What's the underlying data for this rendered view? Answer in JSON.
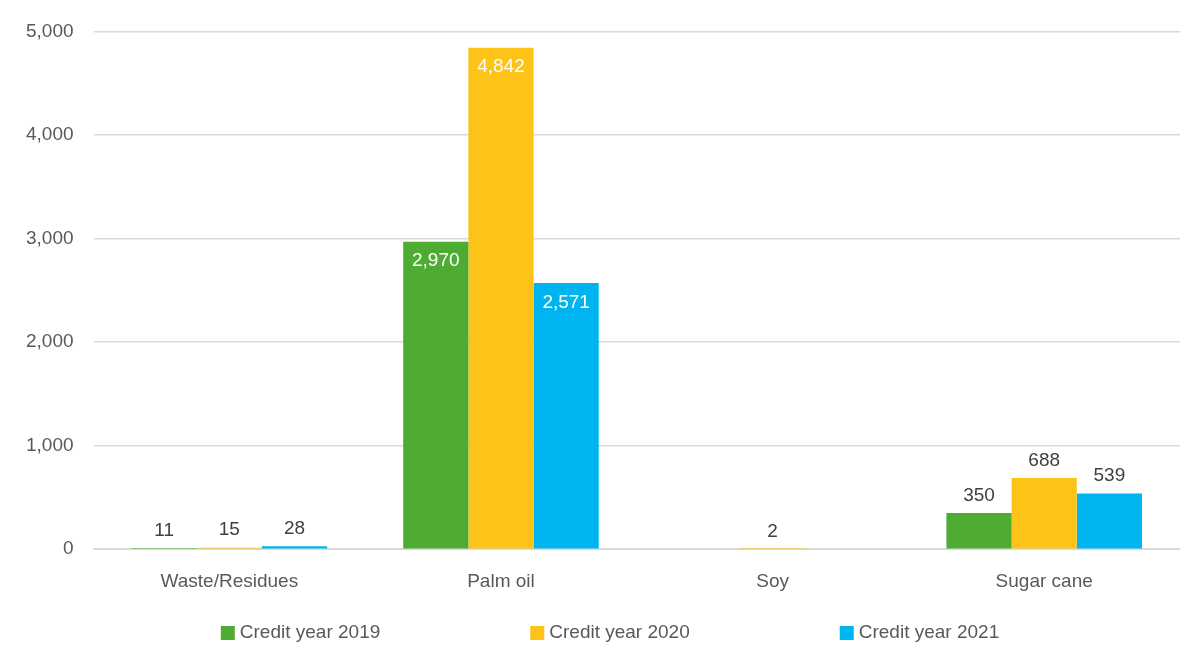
{
  "chart_data": {
    "type": "bar",
    "categories": [
      "Waste/Residues",
      "Palm oil",
      "Soy",
      "Sugar cane"
    ],
    "series": [
      {
        "name": "Credit year 2019",
        "color": "#4eac33",
        "values": [
          11,
          2970,
          null,
          350
        ],
        "value_labels": [
          "11",
          "2,970",
          null,
          "350"
        ]
      },
      {
        "name": "Credit year 2020",
        "color": "#fdc319",
        "values": [
          15,
          4842,
          2,
          688
        ],
        "value_labels": [
          "15",
          "4,842",
          "2",
          "688"
        ]
      },
      {
        "name": "Credit year 2021",
        "color": "#00b5ef",
        "values": [
          28,
          2571,
          null,
          539
        ],
        "value_labels": [
          "28",
          "2,571",
          null,
          "539"
        ]
      }
    ],
    "ylim": [
      0,
      5000
    ],
    "yticks": [
      0,
      {
        "value": 1000,
        "label": "1,000"
      },
      {
        "value": 2000,
        "label": "2,000"
      },
      {
        "value": 3000,
        "label": "3,000"
      },
      {
        "value": 4000,
        "label": "4,000"
      },
      {
        "value": 5000,
        "label": "5,000"
      }
    ],
    "grid": "y",
    "legend": "bottom"
  }
}
